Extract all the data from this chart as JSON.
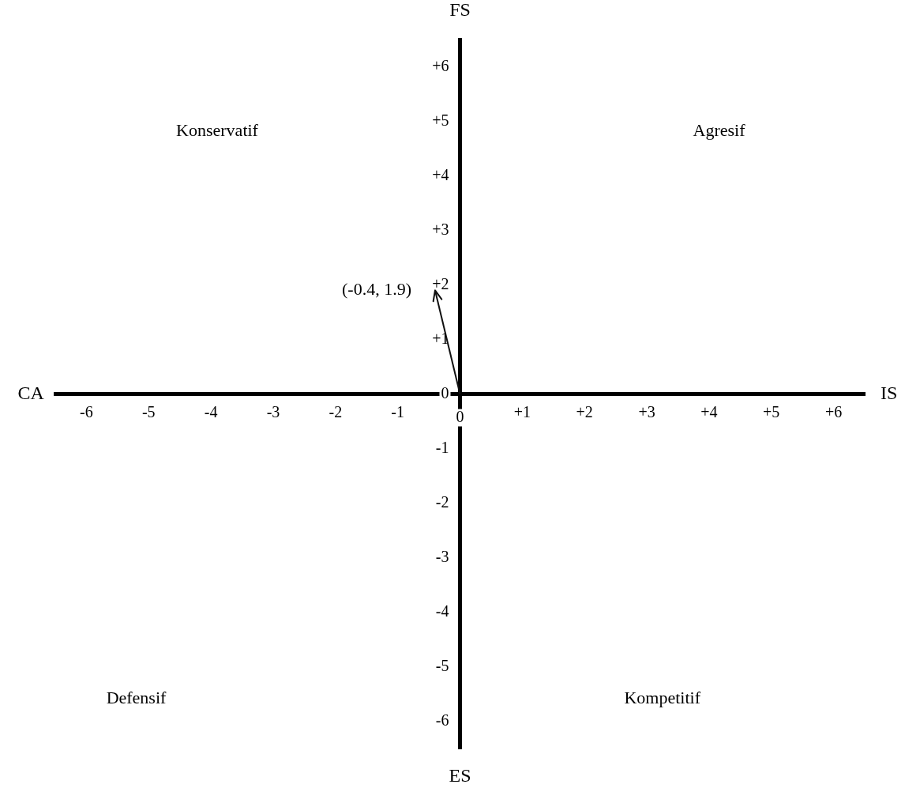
{
  "chart_data": {
    "type": "line",
    "series": [
      {
        "x": [
          0,
          -0.4
        ],
        "values": [
          0,
          1.9
        ],
        "color": "#111111"
      }
    ],
    "marker": "none",
    "xlim": [
      -6.5,
      6.5
    ],
    "ylim": [
      -6.5,
      6.5
    ],
    "xticks": [
      {
        "value": -6,
        "label": "-6"
      },
      {
        "value": -5,
        "label": "-5"
      },
      {
        "value": -4,
        "label": "-4"
      },
      {
        "value": -3,
        "label": "-3"
      },
      {
        "value": -2,
        "label": "-2"
      },
      {
        "value": -1,
        "label": "-1"
      },
      0,
      {
        "value": 1,
        "label": "+1"
      },
      {
        "value": 2,
        "label": "+2"
      },
      {
        "value": 3,
        "label": "+3"
      },
      {
        "value": 4,
        "label": "+4"
      },
      {
        "value": 5,
        "label": "+5"
      },
      {
        "value": 6,
        "label": "+6"
      }
    ],
    "yticks": [
      {
        "value": -6,
        "label": "-6"
      },
      {
        "value": -5,
        "label": "-5"
      },
      {
        "value": -4,
        "label": "-4"
      },
      {
        "value": -3,
        "label": "-3"
      },
      {
        "value": -2,
        "label": "-2"
      },
      {
        "value": -1,
        "label": "-1"
      },
      0,
      {
        "value": 1,
        "label": "+1"
      },
      {
        "value": 2,
        "label": "+2"
      },
      {
        "value": 3,
        "label": "+3"
      },
      {
        "value": 4,
        "label": "+4"
      },
      {
        "value": 5,
        "label": "+5"
      },
      {
        "value": 6,
        "label": "+6"
      }
    ],
    "grid": false,
    "legend": false,
    "annotations": [
      "Konservatif",
      "Agresif",
      "Defensif",
      "Kompetitif",
      "CA",
      "IS",
      "FS",
      "ES",
      {
        "text": "(-0.4, 1.9)",
        "x": -0.4,
        "y": 1.9
      }
    ]
  }
}
